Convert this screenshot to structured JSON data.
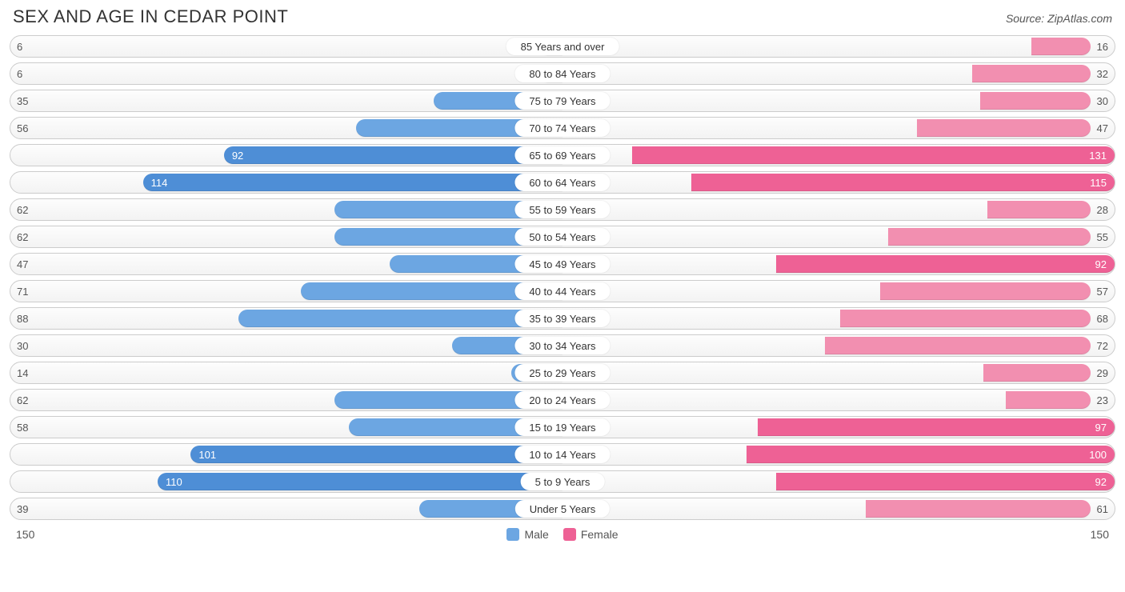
{
  "title": "SEX AND AGE IN CEDAR POINT",
  "source": "Source: ZipAtlas.com",
  "chart": {
    "type": "diverging-bar",
    "axis_max": 150,
    "axis_left_label": "150",
    "axis_right_label": "150",
    "inside_label_threshold": 90,
    "colors": {
      "male_fill": "#6ca6e2",
      "male_dark": "#4e8ed6",
      "female_fill": "#f28fb0",
      "female_dark": "#ee6195",
      "row_border": "#cccccc",
      "text_muted": "#555555",
      "bg": "#ffffff"
    },
    "legend": [
      {
        "label": "Male",
        "color": "#6ca6e2"
      },
      {
        "label": "Female",
        "color": "#ee6195"
      }
    ],
    "rows": [
      {
        "age": "85 Years and over",
        "male": 6,
        "female": 16
      },
      {
        "age": "80 to 84 Years",
        "male": 6,
        "female": 32
      },
      {
        "age": "75 to 79 Years",
        "male": 35,
        "female": 30
      },
      {
        "age": "70 to 74 Years",
        "male": 56,
        "female": 47
      },
      {
        "age": "65 to 69 Years",
        "male": 92,
        "female": 131
      },
      {
        "age": "60 to 64 Years",
        "male": 114,
        "female": 115
      },
      {
        "age": "55 to 59 Years",
        "male": 62,
        "female": 28
      },
      {
        "age": "50 to 54 Years",
        "male": 62,
        "female": 55
      },
      {
        "age": "45 to 49 Years",
        "male": 47,
        "female": 92
      },
      {
        "age": "40 to 44 Years",
        "male": 71,
        "female": 57
      },
      {
        "age": "35 to 39 Years",
        "male": 88,
        "female": 68
      },
      {
        "age": "30 to 34 Years",
        "male": 30,
        "female": 72
      },
      {
        "age": "25 to 29 Years",
        "male": 14,
        "female": 29
      },
      {
        "age": "20 to 24 Years",
        "male": 62,
        "female": 23
      },
      {
        "age": "15 to 19 Years",
        "male": 58,
        "female": 97
      },
      {
        "age": "10 to 14 Years",
        "male": 101,
        "female": 100
      },
      {
        "age": "5 to 9 Years",
        "male": 110,
        "female": 92
      },
      {
        "age": "Under 5 Years",
        "male": 39,
        "female": 61
      }
    ]
  }
}
